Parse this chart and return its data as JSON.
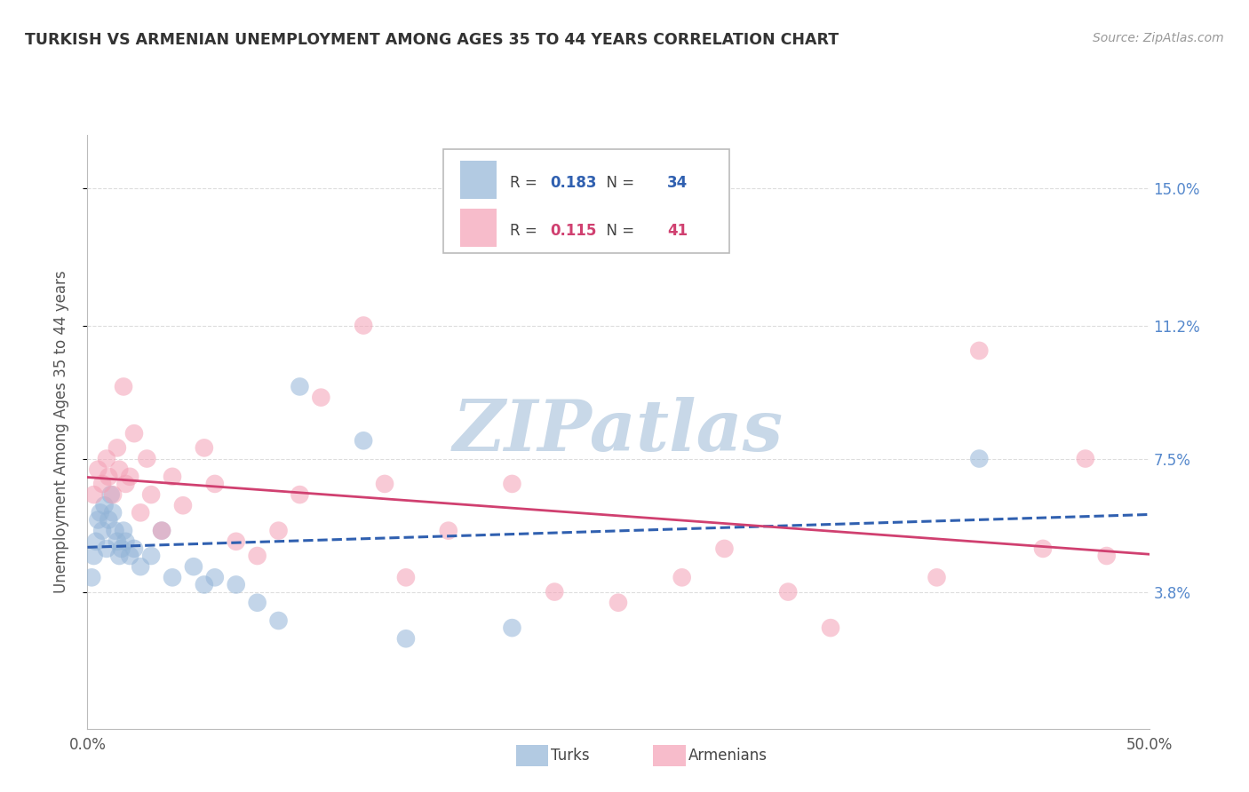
{
  "title": "TURKISH VS ARMENIAN UNEMPLOYMENT AMONG AGES 35 TO 44 YEARS CORRELATION CHART",
  "source": "Source: ZipAtlas.com",
  "ylabel": "Unemployment Among Ages 35 to 44 years",
  "ytick_labels": [
    "3.8%",
    "7.5%",
    "11.2%",
    "15.0%"
  ],
  "ytick_vals": [
    3.8,
    7.5,
    11.2,
    15.0
  ],
  "xlim": [
    0.0,
    50.0
  ],
  "ylim": [
    0.0,
    16.5
  ],
  "turks_R": 0.183,
  "turks_N": 34,
  "armenians_R": 0.115,
  "armenians_N": 41,
  "turks_color": "#92B4D7",
  "armenians_color": "#F4A0B5",
  "turks_line_color": "#3060B0",
  "armenians_line_color": "#D04070",
  "turks_line_style": "--",
  "armenians_line_style": "-",
  "watermark": "ZIPatlas",
  "watermark_color": "#C8D8E8",
  "bg_color": "#FFFFFF",
  "title_color": "#333333",
  "source_color": "#999999",
  "ylabel_color": "#555555",
  "ytick_color": "#5588CC",
  "grid_color": "#DDDDDD",
  "legend_edge_color": "#BBBBBB",
  "turks_x": [
    0.2,
    0.3,
    0.4,
    0.5,
    0.6,
    0.7,
    0.8,
    0.9,
    1.0,
    1.1,
    1.2,
    1.3,
    1.4,
    1.5,
    1.6,
    1.7,
    1.8,
    2.0,
    2.2,
    2.5,
    3.0,
    3.5,
    4.0,
    5.0,
    5.5,
    6.0,
    7.0,
    8.0,
    9.0,
    10.0,
    13.0,
    15.0,
    20.0,
    42.0
  ],
  "turks_y": [
    4.2,
    4.8,
    5.2,
    5.8,
    6.0,
    5.5,
    6.2,
    5.0,
    5.8,
    6.5,
    6.0,
    5.5,
    5.2,
    4.8,
    5.0,
    5.5,
    5.2,
    4.8,
    5.0,
    4.5,
    4.8,
    5.5,
    4.2,
    4.5,
    4.0,
    4.2,
    4.0,
    3.5,
    3.0,
    9.5,
    8.0,
    2.5,
    2.8,
    7.5
  ],
  "armenians_x": [
    0.3,
    0.5,
    0.7,
    0.9,
    1.0,
    1.2,
    1.4,
    1.5,
    1.7,
    1.8,
    2.0,
    2.2,
    2.5,
    2.8,
    3.0,
    3.5,
    4.0,
    4.5,
    5.5,
    6.0,
    7.0,
    8.0,
    9.0,
    10.0,
    11.0,
    13.0,
    14.0,
    15.0,
    17.0,
    20.0,
    22.0,
    25.0,
    28.0,
    30.0,
    33.0,
    35.0,
    40.0,
    42.0,
    45.0,
    47.0,
    48.0
  ],
  "armenians_y": [
    6.5,
    7.2,
    6.8,
    7.5,
    7.0,
    6.5,
    7.8,
    7.2,
    9.5,
    6.8,
    7.0,
    8.2,
    6.0,
    7.5,
    6.5,
    5.5,
    7.0,
    6.2,
    7.8,
    6.8,
    5.2,
    4.8,
    5.5,
    6.5,
    9.2,
    11.2,
    6.8,
    4.2,
    5.5,
    6.8,
    3.8,
    3.5,
    4.2,
    5.0,
    3.8,
    2.8,
    4.2,
    10.5,
    5.0,
    7.5,
    4.8
  ]
}
